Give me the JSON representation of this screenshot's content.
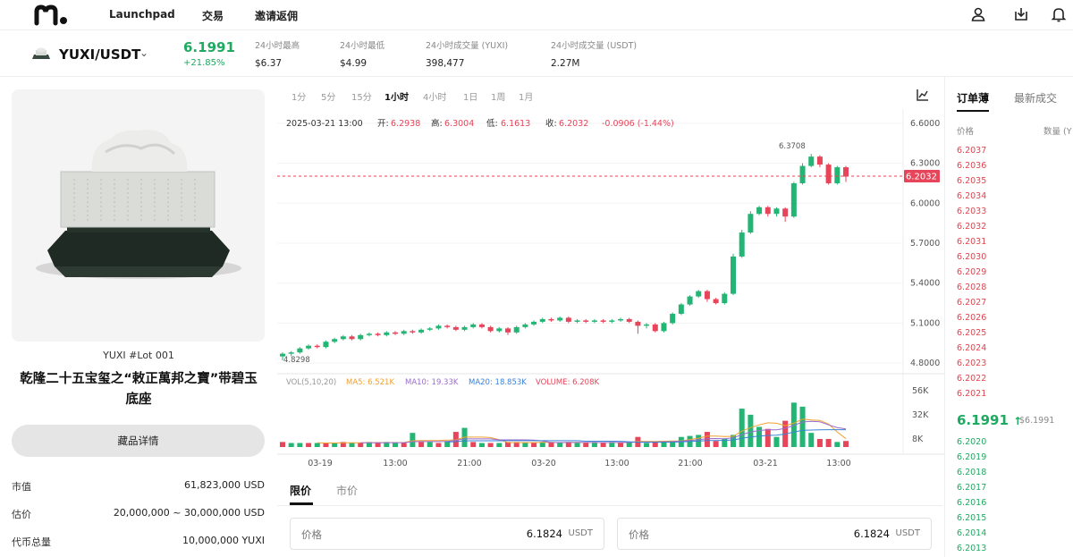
{
  "nav": {
    "items": [
      "Launchpad",
      "交易",
      "邀请返佣"
    ]
  },
  "ticker": {
    "pair": "YUXI/USDT",
    "price": "6.1991",
    "change": "+21.85%",
    "stats": [
      {
        "label": "24小时最高",
        "value": "$6.37"
      },
      {
        "label": "24小时最低",
        "value": "$4.99"
      },
      {
        "label": "24小时成交量 (YUXI)",
        "value": "398,477"
      },
      {
        "label": "24小时成交量 (USDT)",
        "value": "2.27M"
      }
    ]
  },
  "item": {
    "lot": "YUXI #Lot 001",
    "title_line1": "乾隆二十五宝玺之“敕正萬邦之寶”带碧玉",
    "title_line2": "底座",
    "detail_button": "藏品详情",
    "info": [
      {
        "label": "市值",
        "value": "61,823,000 USD"
      },
      {
        "label": "估价",
        "value": "20,000,000 ~ 30,000,000 USD"
      },
      {
        "label": "代币总量",
        "value": "10,000,000 YUXI"
      }
    ]
  },
  "chart": {
    "intervals": [
      "1分",
      "5分",
      "15分",
      "1小时",
      "4小时",
      "1日",
      "1周",
      "1月"
    ],
    "active_interval": "1小时",
    "ohlc": {
      "date": "2025-03-21 13:00",
      "open_label": "开:",
      "open": "6.2938",
      "high_label": "高:",
      "high": "6.3004",
      "low_label": "低:",
      "low": "6.1613",
      "close_label": "收:",
      "close": "6.2032",
      "change": "-0.0906 (-1.44%)"
    },
    "current_price_tag": "6.2032",
    "high_annotation": "6.3708",
    "low_annotation": "4.8298",
    "vol_header": {
      "label": "VOL(5,10,20)",
      "ma5": "MA5: 6.521K",
      "ma10": "MA10: 19.33K",
      "ma20": "MA20: 18.853K",
      "volume": "VOLUME: 6.208K"
    },
    "colors": {
      "up": "#22b573",
      "down": "#e6455a",
      "ma5": "#f0a030",
      "ma10": "#9b6bd0",
      "ma20": "#3a82d8"
    }
  },
  "chart_data": {
    "type": "candlestick",
    "title": "",
    "price_axis_ticks": [
      "6.6000",
      "6.3000",
      "6.0000",
      "5.7000",
      "5.4000",
      "5.1000",
      "4.8000"
    ],
    "volume_axis_ticks": [
      "56K",
      "32K",
      "8K"
    ],
    "x_ticks": [
      "03-19",
      "13:00",
      "21:00",
      "03-20",
      "13:00",
      "21:00",
      "03-21",
      "13:00"
    ],
    "ylim": [
      4.72,
      6.68
    ],
    "volume_ylim": [
      0,
      62
    ],
    "candles": [
      [
        4.85,
        4.87,
        4.82,
        4.88
      ],
      [
        4.87,
        4.88,
        4.85,
        4.89
      ],
      [
        4.88,
        4.91,
        4.87,
        4.92
      ],
      [
        4.91,
        4.93,
        4.9,
        4.94
      ],
      [
        4.93,
        4.92,
        4.91,
        4.94
      ],
      [
        4.92,
        4.96,
        4.91,
        4.97
      ],
      [
        4.96,
        4.98,
        4.95,
        4.99
      ],
      [
        4.98,
        5.0,
        4.97,
        5.01
      ],
      [
        5.0,
        4.98,
        4.97,
        5.01
      ],
      [
        4.98,
        5.01,
        4.97,
        5.02
      ],
      [
        5.01,
        5.02,
        5.0,
        5.03
      ],
      [
        5.02,
        5.01,
        5.0,
        5.03
      ],
      [
        5.01,
        5.03,
        5.0,
        5.04
      ],
      [
        5.03,
        5.02,
        5.01,
        5.04
      ],
      [
        5.02,
        5.04,
        5.01,
        5.05
      ],
      [
        5.04,
        5.03,
        5.02,
        5.05
      ],
      [
        5.03,
        5.05,
        5.02,
        5.06
      ],
      [
        5.05,
        5.06,
        5.04,
        5.07
      ],
      [
        5.06,
        5.08,
        5.05,
        5.09
      ],
      [
        5.08,
        5.07,
        5.06,
        5.09
      ],
      [
        5.07,
        5.05,
        5.04,
        5.08
      ],
      [
        5.05,
        5.07,
        5.04,
        5.08
      ],
      [
        5.07,
        5.09,
        5.06,
        5.1
      ],
      [
        5.09,
        5.07,
        5.06,
        5.1
      ],
      [
        5.07,
        5.04,
        5.03,
        5.08
      ],
      [
        5.04,
        5.06,
        5.03,
        5.07
      ],
      [
        5.06,
        5.03,
        5.01,
        5.07
      ],
      [
        5.03,
        5.07,
        5.02,
        5.08
      ],
      [
        5.07,
        5.09,
        5.06,
        5.1
      ],
      [
        5.09,
        5.11,
        5.08,
        5.12
      ],
      [
        5.11,
        5.13,
        5.1,
        5.14
      ],
      [
        5.13,
        5.12,
        5.11,
        5.14
      ],
      [
        5.12,
        5.14,
        5.11,
        5.15
      ],
      [
        5.14,
        5.11,
        5.1,
        5.15
      ],
      [
        5.11,
        5.12,
        5.1,
        5.13
      ],
      [
        5.12,
        5.11,
        5.1,
        5.13
      ],
      [
        5.11,
        5.12,
        5.1,
        5.13
      ],
      [
        5.12,
        5.11,
        5.1,
        5.13
      ],
      [
        5.11,
        5.12,
        5.1,
        5.13
      ],
      [
        5.12,
        5.13,
        5.11,
        5.14
      ],
      [
        5.13,
        5.11,
        5.1,
        5.14
      ],
      [
        5.11,
        5.08,
        5.02,
        5.12
      ],
      [
        5.08,
        5.09,
        5.06,
        5.1
      ],
      [
        5.09,
        5.04,
        5.03,
        5.1
      ],
      [
        5.04,
        5.1,
        5.03,
        5.11
      ],
      [
        5.1,
        5.17,
        5.09,
        5.18
      ],
      [
        5.17,
        5.24,
        5.16,
        5.25
      ],
      [
        5.24,
        5.3,
        5.23,
        5.31
      ],
      [
        5.3,
        5.34,
        5.29,
        5.35
      ],
      [
        5.34,
        5.28,
        5.26,
        5.35
      ],
      [
        5.28,
        5.25,
        5.24,
        5.29
      ],
      [
        5.25,
        5.32,
        5.24,
        5.33
      ],
      [
        5.32,
        5.6,
        5.31,
        5.62
      ],
      [
        5.6,
        5.78,
        5.59,
        5.8
      ],
      [
        5.78,
        5.92,
        5.77,
        5.94
      ],
      [
        5.92,
        5.97,
        5.91,
        5.98
      ],
      [
        5.97,
        5.92,
        5.9,
        5.98
      ],
      [
        5.92,
        5.96,
        5.9,
        5.97
      ],
      [
        5.96,
        5.9,
        5.86,
        5.97
      ],
      [
        5.9,
        6.15,
        5.89,
        6.16
      ],
      [
        6.15,
        6.28,
        6.14,
        6.3
      ],
      [
        6.28,
        6.35,
        6.27,
        6.37
      ],
      [
        6.35,
        6.29,
        6.27,
        6.36
      ],
      [
        6.29,
        6.15,
        6.14,
        6.3
      ],
      [
        6.15,
        6.27,
        6.14,
        6.28
      ],
      [
        6.27,
        6.2,
        6.16,
        6.28
      ]
    ],
    "volumes": [
      [
        5,
        "down"
      ],
      [
        4,
        "up"
      ],
      [
        4,
        "up"
      ],
      [
        4,
        "down"
      ],
      [
        4,
        "up"
      ],
      [
        4,
        "down"
      ],
      [
        4,
        "up"
      ],
      [
        5,
        "down"
      ],
      [
        4,
        "up"
      ],
      [
        4,
        "down"
      ],
      [
        5,
        "up"
      ],
      [
        4,
        "down"
      ],
      [
        5,
        "up"
      ],
      [
        4,
        "up"
      ],
      [
        4,
        "down"
      ],
      [
        14,
        "up"
      ],
      [
        5,
        "down"
      ],
      [
        5,
        "up"
      ],
      [
        4,
        "down"
      ],
      [
        6,
        "up"
      ],
      [
        15,
        "down"
      ],
      [
        19,
        "up"
      ],
      [
        5,
        "down"
      ],
      [
        4,
        "up"
      ],
      [
        4,
        "down"
      ],
      [
        4,
        "up"
      ],
      [
        5,
        "down"
      ],
      [
        5,
        "down"
      ],
      [
        4,
        "up"
      ],
      [
        4,
        "down"
      ],
      [
        5,
        "up"
      ],
      [
        5,
        "down"
      ],
      [
        4,
        "up"
      ],
      [
        5,
        "down"
      ],
      [
        4,
        "up"
      ],
      [
        4,
        "down"
      ],
      [
        5,
        "up"
      ],
      [
        4,
        "down"
      ],
      [
        5,
        "up"
      ],
      [
        4,
        "down"
      ],
      [
        5,
        "up"
      ],
      [
        10,
        "down"
      ],
      [
        4,
        "up"
      ],
      [
        5,
        "down"
      ],
      [
        5,
        "up"
      ],
      [
        6,
        "up"
      ],
      [
        10,
        "up"
      ],
      [
        11,
        "up"
      ],
      [
        12,
        "up"
      ],
      [
        15,
        "down"
      ],
      [
        6,
        "down"
      ],
      [
        8,
        "up"
      ],
      [
        12,
        "up"
      ],
      [
        38,
        "up"
      ],
      [
        32,
        "up"
      ],
      [
        20,
        "up"
      ],
      [
        18,
        "down"
      ],
      [
        10,
        "up"
      ],
      [
        26,
        "down"
      ],
      [
        44,
        "up"
      ],
      [
        40,
        "up"
      ],
      [
        14,
        "up"
      ],
      [
        8,
        "down"
      ],
      [
        8,
        "down"
      ],
      [
        5,
        "up"
      ],
      [
        6,
        "down"
      ]
    ]
  },
  "order_form": {
    "tabs": [
      "限价",
      "市价"
    ],
    "price_label": "价格",
    "price_value": "6.1824",
    "price_unit": "USDT"
  },
  "order_book": {
    "tabs": [
      "订单薄",
      "最新成交"
    ],
    "col_price": "价格",
    "col_qty": "数量 (Y",
    "asks": [
      "6.2037",
      "6.2036",
      "6.2035",
      "6.2034",
      "6.2033",
      "6.2032",
      "6.2031",
      "6.2030",
      "6.2029",
      "6.2028",
      "6.2027",
      "6.2026",
      "6.2025",
      "6.2024",
      "6.2023",
      "6.2022",
      "6.2021"
    ],
    "mid_price": "6.1991",
    "mid_arrow": "↑",
    "mid_ref": "$6.1991",
    "bids": [
      "6.2020",
      "6.2019",
      "6.2018",
      "6.2017",
      "6.2016",
      "6.2015",
      "6.2014",
      "6.2013"
    ]
  }
}
